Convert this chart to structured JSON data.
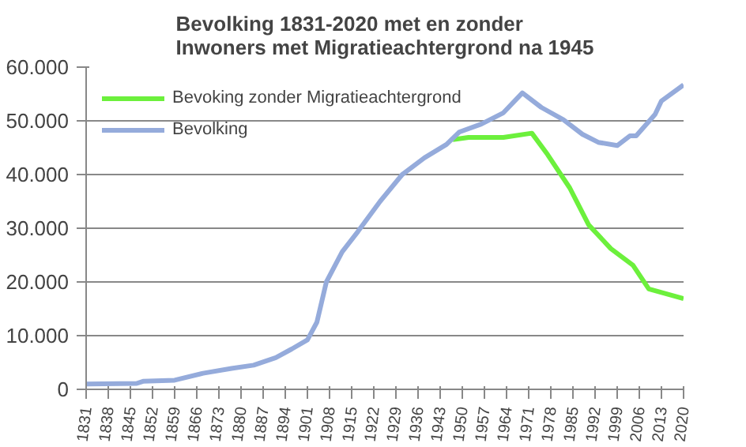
{
  "chart_data": {
    "type": "line",
    "title": "Bevolking 1831-2020  met en zonder\nInwoners met Migratieachtergrond na 1945",
    "series": [
      {
        "name": "Bevoking zonder Migratieachtergrond",
        "color": "#6cf03c",
        "x": [
          1947,
          1952,
          1963,
          1972,
          1977,
          1984,
          1990,
          1997,
          2004,
          2009,
          2020
        ],
        "values": [
          46500,
          46900,
          46900,
          47700,
          43700,
          37500,
          30600,
          26200,
          23100,
          18700,
          16900
        ]
      },
      {
        "name": "Bevolking",
        "color": "#95abdb",
        "x": [
          1831,
          1847,
          1849,
          1859,
          1868,
          1877,
          1884,
          1891,
          1896,
          1901,
          1904,
          1907,
          1912,
          1917,
          1924,
          1931,
          1938,
          1945,
          1949,
          1956,
          1963,
          1969,
          1975,
          1982,
          1988,
          1993,
          1999,
          2003,
          2005,
          2011,
          2013,
          2020
        ],
        "values": [
          1000,
          1100,
          1500,
          1700,
          3000,
          3900,
          4500,
          5900,
          7500,
          9200,
          12500,
          20000,
          25600,
          29400,
          35000,
          40000,
          43100,
          45600,
          47900,
          49400,
          51500,
          55200,
          52500,
          50200,
          47500,
          46000,
          45400,
          47200,
          47200,
          51200,
          53700,
          56700
        ]
      }
    ],
    "xlim": [
      1831,
      2020
    ],
    "xticks": [
      1831,
      1838,
      1845,
      1852,
      1859,
      1866,
      1873,
      1880,
      1887,
      1894,
      1901,
      1908,
      1915,
      1922,
      1929,
      1936,
      1943,
      1950,
      1957,
      1964,
      1971,
      1978,
      1985,
      1992,
      1999,
      2006,
      2013,
      2020
    ],
    "ylim": [
      0,
      60000
    ],
    "yticks": [
      {
        "value": 0,
        "label": "0"
      },
      {
        "value": 10000,
        "label": "10.000"
      },
      {
        "value": 20000,
        "label": "20.000"
      },
      {
        "value": 30000,
        "label": "30.000"
      },
      {
        "value": 40000,
        "label": "40.000"
      },
      {
        "value": 50000,
        "label": "50.000"
      },
      {
        "value": 60000,
        "label": "60.000"
      }
    ],
    "grid": "y",
    "legend": "top left",
    "line_style": "solid",
    "marker": "none"
  }
}
